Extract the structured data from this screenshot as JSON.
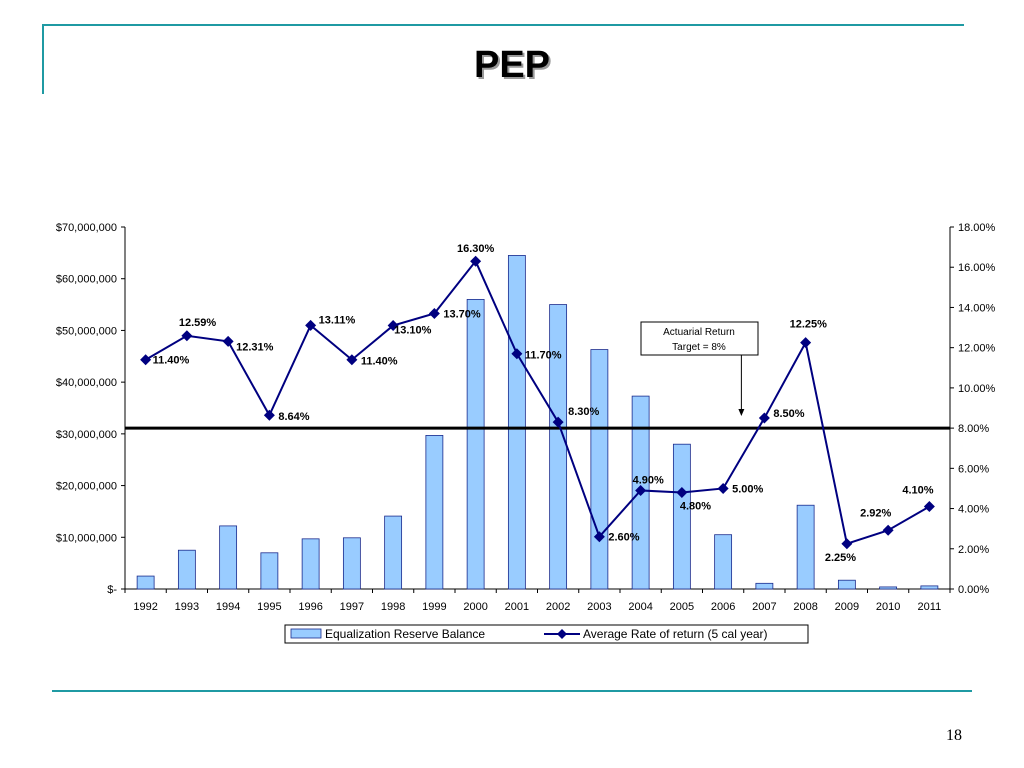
{
  "slide": {
    "title": "PEP",
    "page_number": "18"
  },
  "colors": {
    "accent_rule": "#1f9aa3",
    "bar_fill": "#99ccff",
    "bar_stroke": "#1a2a8c",
    "line_color": "#000080"
  },
  "chart_data": {
    "type": "bar",
    "secondary_type": "line",
    "categories": [
      "1992",
      "1993",
      "1994",
      "1995",
      "1996",
      "1997",
      "1998",
      "1999",
      "2000",
      "2001",
      "2002",
      "2003",
      "2004",
      "2005",
      "2006",
      "2007",
      "2008",
      "2009",
      "2010",
      "2011"
    ],
    "series": [
      {
        "name": "Equalization Reserve Balance",
        "type": "bar",
        "axis": "left",
        "values": [
          2500000,
          7500000,
          12200000,
          7000000,
          9700000,
          9900000,
          14100000,
          29700000,
          56000000,
          64500000,
          55000000,
          46300000,
          37300000,
          28000000,
          10500000,
          1100000,
          16200000,
          1700000,
          400000,
          600000
        ]
      },
      {
        "name": "Average Rate of return (5 cal year)",
        "type": "line",
        "axis": "right",
        "values": [
          11.4,
          12.59,
          12.31,
          8.64,
          13.11,
          11.4,
          13.1,
          13.7,
          16.3,
          11.7,
          8.3,
          2.6,
          4.9,
          4.8,
          5.0,
          8.5,
          12.25,
          2.25,
          2.92,
          4.1
        ],
        "labels": [
          "11.40%",
          "12.59%",
          "12.31%",
          "8.64%",
          "13.11%",
          "11.40%",
          "13.10%",
          "13.70%",
          "16.30%",
          "11.70%",
          "8.30%",
          "2.60%",
          "4.90%",
          "4.80%",
          "5.00%",
          "8.50%",
          "12.25%",
          "2.25%",
          "2.92%",
          "4.10%"
        ]
      }
    ],
    "y_left": {
      "ylim": [
        0,
        70000000
      ],
      "ticks": [
        0,
        10000000,
        20000000,
        30000000,
        40000000,
        50000000,
        60000000,
        70000000
      ],
      "tick_labels": [
        "$-",
        "$10,000,000",
        "$20,000,000",
        "$30,000,000",
        "$40,000,000",
        "$50,000,000",
        "$60,000,000",
        "$70,000,000"
      ]
    },
    "y_right": {
      "ylim": [
        0,
        18
      ],
      "ticks": [
        0,
        2,
        4,
        6,
        8,
        10,
        12,
        14,
        16,
        18
      ],
      "tick_labels": [
        "0.00%",
        "2.00%",
        "4.00%",
        "6.00%",
        "8.00%",
        "10.00%",
        "12.00%",
        "14.00%",
        "16.00%",
        "18.00%"
      ]
    },
    "reference_line": {
      "value": 8,
      "axis": "right"
    },
    "annotation": {
      "text_line1": "Actuarial Return",
      "text_line2": "Target = 8%",
      "category": "2007"
    },
    "legend": {
      "position": "bottom"
    },
    "grid": false
  }
}
